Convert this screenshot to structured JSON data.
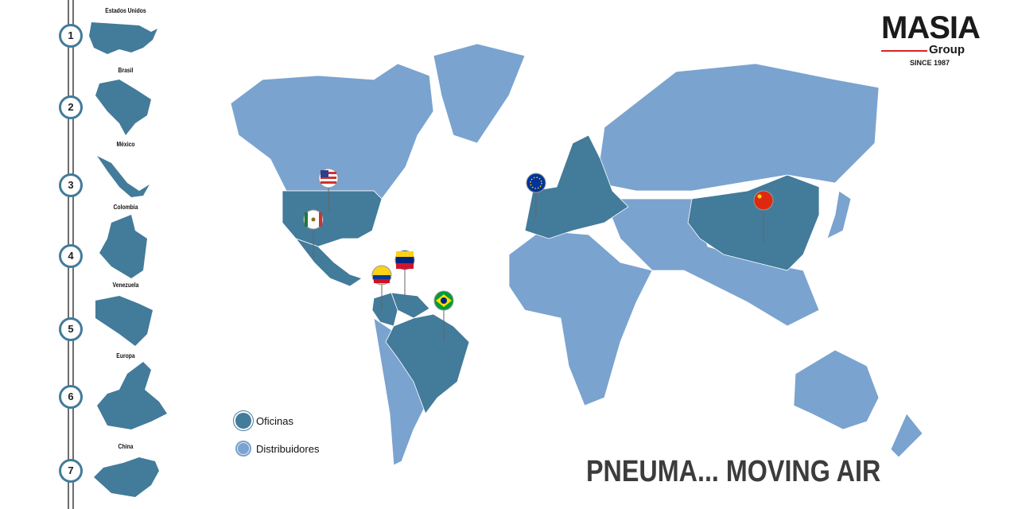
{
  "brand": {
    "name": "MASIA",
    "sub": "Group",
    "since": "SINCE 1987"
  },
  "timeline": [
    {
      "n": "1",
      "label": "Estados Unidos"
    },
    {
      "n": "2",
      "label": "Brasil"
    },
    {
      "n": "3",
      "label": "México"
    },
    {
      "n": "4",
      "label": "Colombia"
    },
    {
      "n": "5",
      "label": "Venezuela"
    },
    {
      "n": "6",
      "label": "Europa"
    },
    {
      "n": "7",
      "label": "China"
    }
  ],
  "legend": [
    {
      "label": "Oficinas",
      "color": "#437b9a"
    },
    {
      "label": "Distribuidores",
      "color": "#7aa3cf"
    }
  ],
  "pins": [
    "usa-flag",
    "mexico-flag",
    "colombia-flag",
    "venezuela-flag",
    "brazil-flag",
    "eu-flag",
    "china-flag"
  ],
  "slogan": "PNEUMA... MOVING AIR",
  "colors": {
    "office": "#437b9a",
    "distributor": "#7aa3cf",
    "accent": "#d22222"
  }
}
